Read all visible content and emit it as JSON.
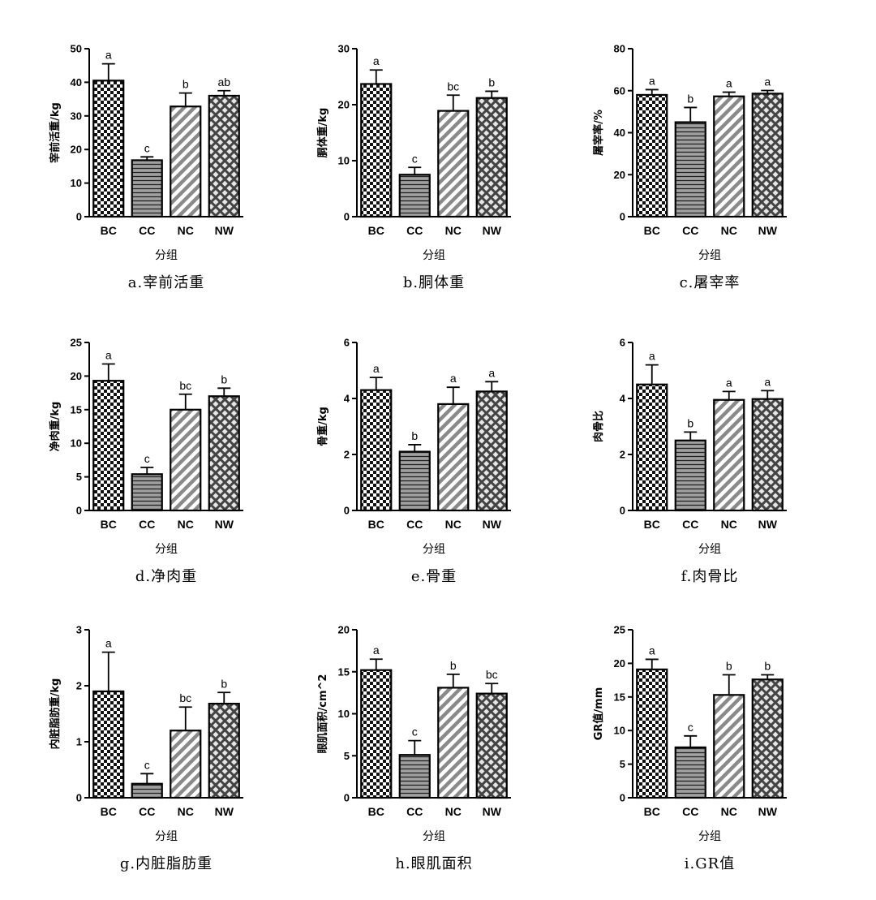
{
  "chart_data": [
    {
      "type": "bar",
      "caption": "a.宰前活重",
      "ylabel": "宰前活重/kg",
      "xlabel": "分组",
      "categories": [
        "BC",
        "CC",
        "NC",
        "NW"
      ],
      "values": [
        40.5,
        16.8,
        32.8,
        36.0
      ],
      "errors": [
        5.0,
        1.0,
        4.0,
        1.5
      ],
      "significance": [
        "a",
        "c",
        "b",
        "ab"
      ],
      "ylim": [
        0,
        50
      ],
      "yticks": [
        0,
        10,
        20,
        30,
        40,
        50
      ]
    },
    {
      "type": "bar",
      "caption": "b.胴体重",
      "ylabel": "胴体重/kg",
      "xlabel": "分组",
      "categories": [
        "BC",
        "CC",
        "NC",
        "NW"
      ],
      "values": [
        23.7,
        7.5,
        18.9,
        21.2
      ],
      "errors": [
        2.5,
        1.3,
        2.8,
        1.2
      ],
      "significance": [
        "a",
        "c",
        "bc",
        "b"
      ],
      "ylim": [
        0,
        30
      ],
      "yticks": [
        0,
        10,
        20,
        30
      ]
    },
    {
      "type": "bar",
      "caption": "c.屠宰率",
      "ylabel": "屠宰率/%",
      "xlabel": "分组",
      "categories": [
        "BC",
        "CC",
        "NC",
        "NW"
      ],
      "values": [
        58.0,
        45.0,
        57.3,
        58.6
      ],
      "errors": [
        2.5,
        7.0,
        2.0,
        1.5
      ],
      "significance": [
        "a",
        "b",
        "a",
        "a"
      ],
      "ylim": [
        0,
        80
      ],
      "yticks": [
        0,
        20,
        40,
        60,
        80
      ]
    },
    {
      "type": "bar",
      "caption": "d.净肉重",
      "ylabel": "净肉重/kg",
      "xlabel": "分组",
      "categories": [
        "BC",
        "CC",
        "NC",
        "NW"
      ],
      "values": [
        19.3,
        5.4,
        15.0,
        17.0
      ],
      "errors": [
        2.5,
        1.0,
        2.3,
        1.2
      ],
      "significance": [
        "a",
        "c",
        "bc",
        "b"
      ],
      "ylim": [
        0,
        25
      ],
      "yticks": [
        0,
        5,
        10,
        15,
        20,
        25
      ]
    },
    {
      "type": "bar",
      "caption": "e.骨重",
      "ylabel": "骨重/kg",
      "xlabel": "分组",
      "categories": [
        "BC",
        "CC",
        "NC",
        "NW"
      ],
      "values": [
        4.3,
        2.1,
        3.8,
        4.25
      ],
      "errors": [
        0.45,
        0.25,
        0.6,
        0.35
      ],
      "significance": [
        "a",
        "b",
        "a",
        "a"
      ],
      "ylim": [
        0,
        6
      ],
      "yticks": [
        0,
        2,
        4,
        6
      ]
    },
    {
      "type": "bar",
      "caption": "f.肉骨比",
      "ylabel": "肉骨比",
      "xlabel": "分组",
      "categories": [
        "BC",
        "CC",
        "NC",
        "NW"
      ],
      "values": [
        4.5,
        2.5,
        3.95,
        3.98
      ],
      "errors": [
        0.7,
        0.3,
        0.3,
        0.3
      ],
      "significance": [
        "a",
        "b",
        "a",
        "a"
      ],
      "ylim": [
        0,
        6
      ],
      "yticks": [
        0,
        2,
        4,
        6
      ]
    },
    {
      "type": "bar",
      "caption": "g.内脏脂肪重",
      "ylabel": "内脏脂肪重/kg",
      "xlabel": "分组",
      "categories": [
        "BC",
        "CC",
        "NC",
        "NW"
      ],
      "values": [
        1.9,
        0.25,
        1.2,
        1.68
      ],
      "errors": [
        0.7,
        0.18,
        0.42,
        0.2
      ],
      "significance": [
        "a",
        "c",
        "bc",
        "b"
      ],
      "ylim": [
        0,
        3
      ],
      "yticks": [
        0,
        1,
        2,
        3
      ]
    },
    {
      "type": "bar",
      "caption": "h.眼肌面积",
      "ylabel": "眼肌面积/cm^2",
      "xlabel": "分组",
      "categories": [
        "BC",
        "CC",
        "NC",
        "NW"
      ],
      "values": [
        15.2,
        5.1,
        13.1,
        12.4
      ],
      "errors": [
        1.3,
        1.7,
        1.6,
        1.2
      ],
      "significance": [
        "a",
        "c",
        "b",
        "bc"
      ],
      "ylim": [
        0,
        20
      ],
      "yticks": [
        0,
        5,
        10,
        15,
        20
      ]
    },
    {
      "type": "bar",
      "caption": "i.GR值",
      "ylabel": "GR值/mm",
      "xlabel": "分组",
      "categories": [
        "BC",
        "CC",
        "NC",
        "NW"
      ],
      "values": [
        19.1,
        7.5,
        15.3,
        17.6
      ],
      "errors": [
        1.5,
        1.7,
        3.0,
        0.7
      ],
      "significance": [
        "a",
        "c",
        "b",
        "b"
      ],
      "ylim": [
        0,
        25
      ],
      "yticks": [
        0,
        5,
        10,
        15,
        20,
        25
      ]
    }
  ],
  "bar_patterns": [
    "checker",
    "hstripe",
    "diag",
    "cross"
  ],
  "colors": {
    "bar_stroke": "#000000",
    "axis": "#000000",
    "hstripe_fill": "#a0a0a0",
    "diag_fill": "#b4b4b4",
    "cross_fill": "#5a5a5a"
  }
}
